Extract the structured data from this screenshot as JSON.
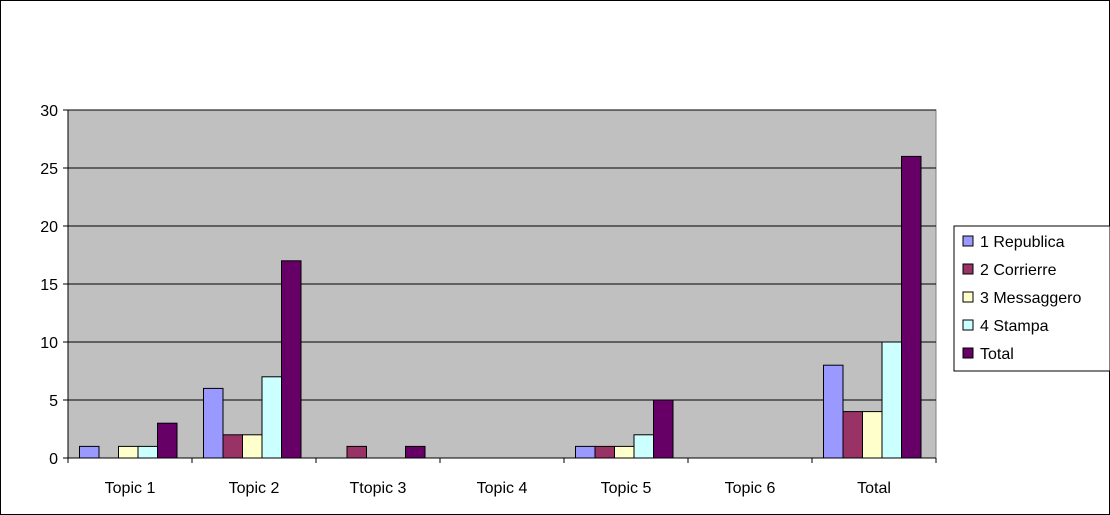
{
  "chart_data": {
    "type": "bar",
    "title": "",
    "xlabel": "",
    "ylabel": "",
    "ylim": [
      0,
      30
    ],
    "yticks": [
      0,
      5,
      10,
      15,
      20,
      25,
      30
    ],
    "grid": true,
    "legend_position": "right",
    "plot_background": "#c0c0c0",
    "categories": [
      "Topic 1",
      "Topic 2",
      "Ttopic 3",
      "Topic 4",
      "Topic 5",
      "Topic 6",
      "Total"
    ],
    "series": [
      {
        "name": "1 Republica",
        "color": "#9999ff",
        "values": [
          1,
          6,
          0,
          0,
          1,
          0,
          8
        ]
      },
      {
        "name": "2 Corrierre",
        "color": "#993366",
        "values": [
          0,
          2,
          1,
          0,
          1,
          0,
          4
        ]
      },
      {
        "name": "3 Messaggero",
        "color": "#ffffcc",
        "values": [
          1,
          2,
          0,
          0,
          1,
          0,
          4
        ]
      },
      {
        "name": "4 Stampa",
        "color": "#ccffff",
        "values": [
          1,
          7,
          0,
          0,
          2,
          0,
          10
        ]
      },
      {
        "name": "Total",
        "color": "#660066",
        "values": [
          3,
          17,
          1,
          0,
          5,
          0,
          26
        ]
      }
    ]
  }
}
